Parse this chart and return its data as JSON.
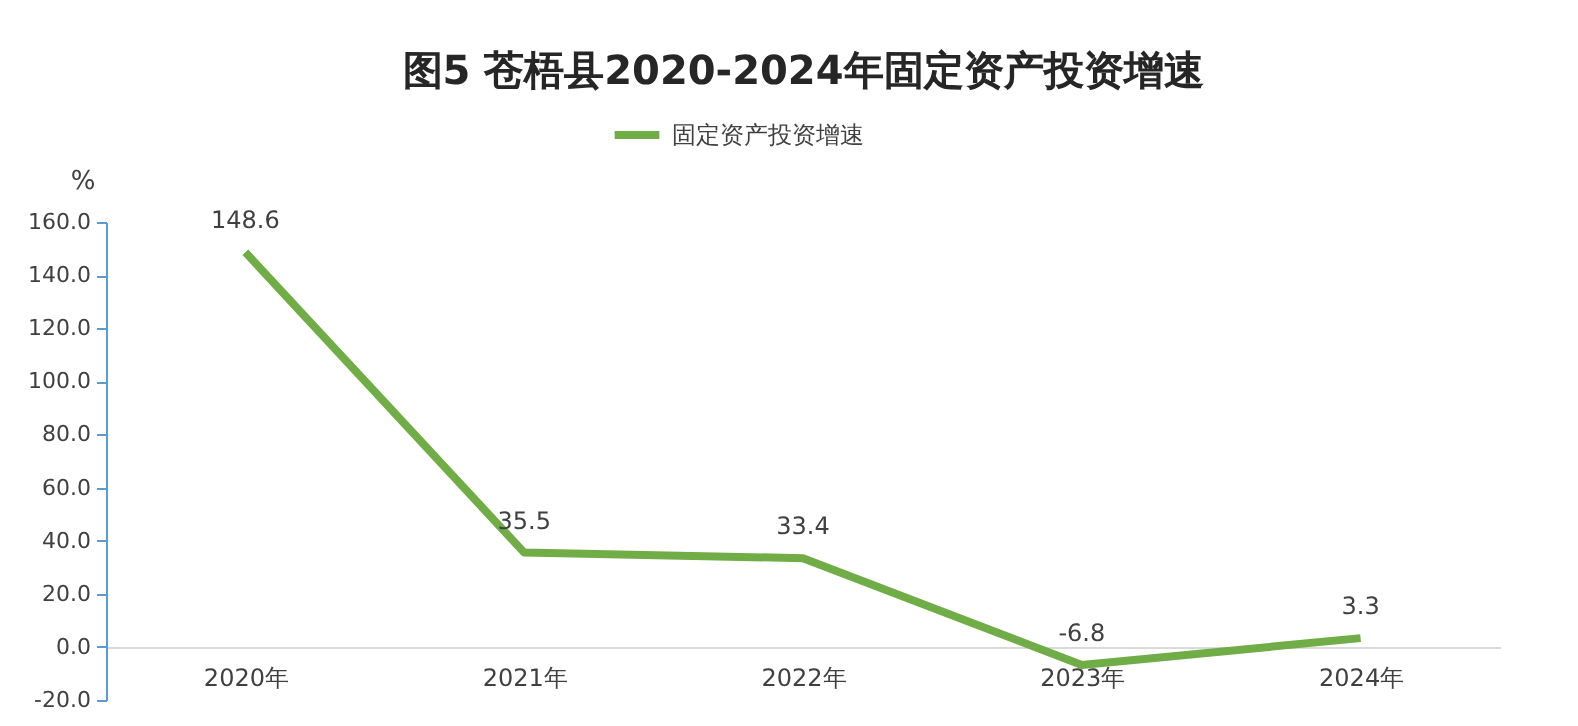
{
  "chart_data": {
    "type": "line",
    "title": "图5  苍梧县2020-2024年固定资产投资增速",
    "ylabel": "%",
    "categories": [
      "2020年",
      "2021年",
      "2022年",
      "2023年",
      "2024年"
    ],
    "series": [
      {
        "name": "固定资产投资增速",
        "color": "#70ad47",
        "values": [
          148.6,
          35.5,
          33.4,
          -6.8,
          3.3
        ]
      }
    ],
    "ylim": [
      -20,
      160
    ],
    "yticks": [
      {
        "value": -20,
        "label": "-20.0"
      },
      {
        "value": 0,
        "label": "0.0"
      },
      {
        "value": 20,
        "label": "20.0"
      },
      {
        "value": 40,
        "label": "40.0"
      },
      {
        "value": 60,
        "label": "60.0"
      },
      {
        "value": 80,
        "label": "80.0"
      },
      {
        "value": 100,
        "label": "100.0"
      },
      {
        "value": 120,
        "label": "120.0"
      },
      {
        "value": 140,
        "label": "140.0"
      },
      {
        "value": 160,
        "label": "160.0"
      }
    ],
    "data_labels": true,
    "legend": "top",
    "grid": false,
    "marker": "none",
    "line_style": "solid"
  }
}
